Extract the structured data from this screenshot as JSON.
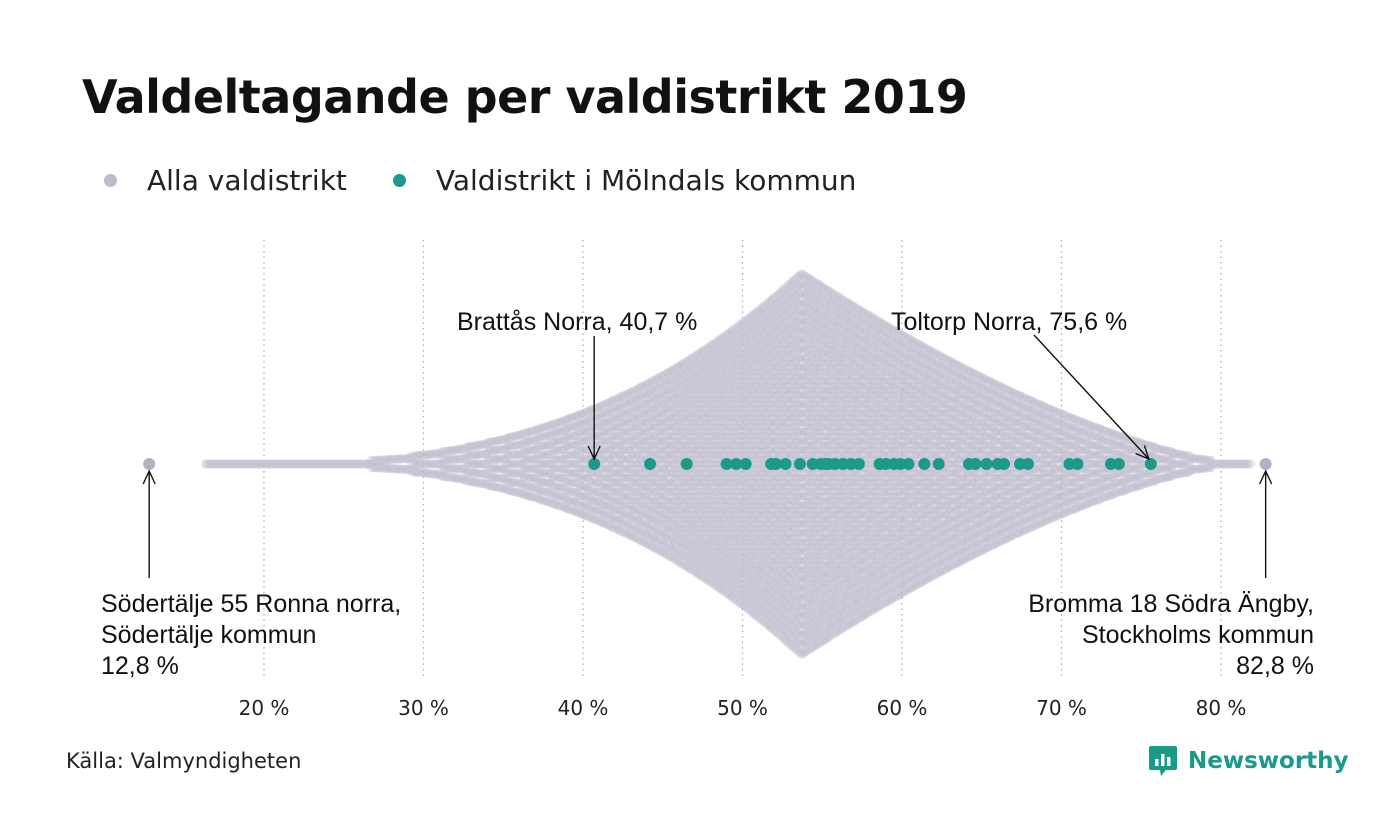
{
  "title": "Valdeltagande per valdistrikt 2019",
  "legend": [
    {
      "label": "Alla valdistrikt",
      "color": "#bdbccb"
    },
    {
      "label": "Valdistrikt i Mölndals kommun",
      "color": "#1b9a8b"
    }
  ],
  "source": "Källa: Valmyndigheten",
  "brand": {
    "name": "Newsworthy",
    "icon": "newsworthy-logo-icon",
    "color": "#1a9a8a"
  },
  "chart_data": {
    "type": "scatter",
    "subtype": "beeswarm",
    "x_unit": "%",
    "xlim": [
      11,
      86
    ],
    "xticks": [
      20,
      30,
      40,
      50,
      60,
      70,
      80
    ],
    "xtick_labels": [
      "20 %",
      "30 %",
      "40 %",
      "50 %",
      "60 %",
      "70 %",
      "80 %"
    ],
    "grid": "vertical dotted",
    "series": [
      {
        "name": "Alla valdistrikt",
        "color": "#bdbccb",
        "distribution": {
          "min": 12.8,
          "mode": 53.7,
          "max": 82.8
        }
      },
      {
        "name": "Valdistrikt i Mölndals kommun",
        "color": "#1b9a8b",
        "values": [
          40.7,
          44.2,
          46.5,
          49.0,
          49.6,
          50.2,
          51.8,
          52.1,
          52.7,
          53.6,
          54.4,
          54.9,
          55.2,
          55.4,
          55.8,
          56.3,
          56.8,
          57.3,
          58.6,
          59.0,
          59.5,
          59.9,
          60.4,
          61.4,
          62.3,
          64.2,
          64.6,
          65.3,
          66.0,
          66.4,
          67.4,
          67.9,
          70.5,
          71.0,
          73.1,
          73.6,
          75.6
        ]
      }
    ],
    "annotations": [
      {
        "lines": [
          "Brattås Norra, 40,7 %"
        ],
        "x": 40.7
      },
      {
        "lines": [
          "Toltorp Norra, 75,6 %"
        ],
        "x": 75.6
      },
      {
        "lines": [
          "Södertälje 55 Ronna norra,",
          "Södertälje kommun",
          "12,8 %"
        ],
        "x": 12.8
      },
      {
        "lines": [
          "Bromma 18 Södra Ängby,",
          "Stockholms kommun",
          "82,8 %"
        ],
        "x": 82.8
      }
    ]
  }
}
